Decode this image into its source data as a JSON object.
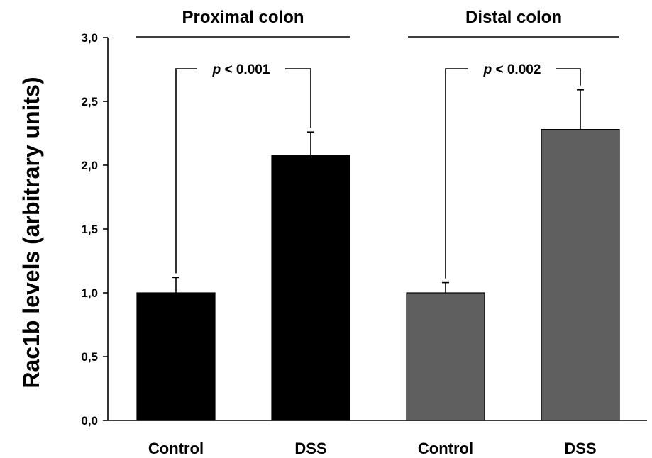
{
  "chart_data": {
    "type": "bar",
    "ylabel": "Rac1b levels (arbitrary units)",
    "ylim": [
      0,
      3.0
    ],
    "yticks": [
      "0,0",
      "0,5",
      "1,0",
      "1,5",
      "2,0",
      "2,5",
      "3,0"
    ],
    "grid": false,
    "groups": [
      {
        "name": "Proximal colon",
        "color": "#000000",
        "bars": [
          {
            "category": "Control",
            "value": 1.0,
            "error": 0.12
          },
          {
            "category": "DSS",
            "value": 2.08,
            "error": 0.18
          }
        ],
        "p_value": {
          "prefix": "p",
          "text": " < 0.001"
        }
      },
      {
        "name": "Distal colon",
        "color": "#5f5f5f",
        "bars": [
          {
            "category": "Control",
            "value": 1.0,
            "error": 0.08
          },
          {
            "category": "DSS",
            "value": 2.28,
            "error": 0.31
          }
        ],
        "p_value": {
          "prefix": "p",
          "text": " < 0.002"
        }
      }
    ]
  }
}
